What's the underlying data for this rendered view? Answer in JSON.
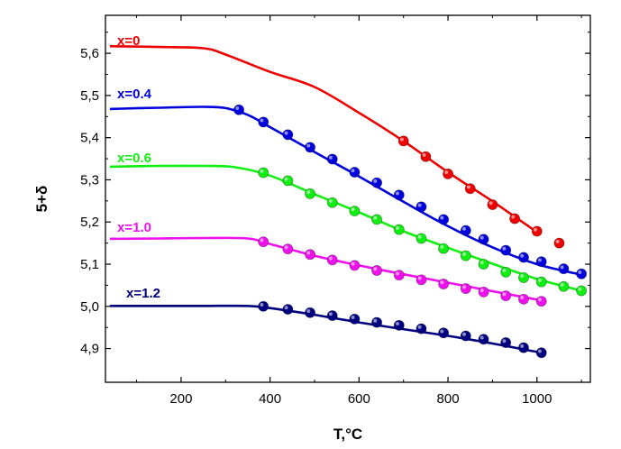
{
  "chart_data": {
    "type": "scatter",
    "xlabel": "T,°C",
    "ylabel": "5+δ",
    "xlim": [
      30,
      1120
    ],
    "ylim": [
      4.82,
      5.69
    ],
    "x_ticks": [
      200,
      400,
      600,
      800,
      1000
    ],
    "y_ticks": [
      4.9,
      5.0,
      5.1,
      5.2,
      5.3,
      5.4,
      5.5,
      5.6
    ],
    "y_tick_labels": [
      "4,9",
      "5,0",
      "5,1",
      "5,2",
      "5,3",
      "5,4",
      "5,5",
      "5,6"
    ],
    "grid": false,
    "series": [
      {
        "name": "x=0",
        "color": "#ee0000",
        "line": {
          "x": [
            40,
            150,
            250,
            300,
            400,
            500,
            600,
            700,
            800,
            900,
            1000
          ],
          "y": [
            5.617,
            5.615,
            5.612,
            5.597,
            5.556,
            5.52,
            5.459,
            5.392,
            5.318,
            5.249,
            5.176
          ]
        },
        "points": {
          "x": [
            700,
            750,
            800,
            850,
            900,
            950,
            1000,
            1050
          ],
          "y": [
            5.392,
            5.355,
            5.314,
            5.279,
            5.241,
            5.208,
            5.178,
            5.15
          ]
        }
      },
      {
        "name": "x=0.4",
        "color": "#0000dd",
        "line": {
          "x": [
            40,
            150,
            250,
            300,
            350,
            400,
            500,
            600,
            700,
            800,
            900,
            1000,
            1100
          ],
          "y": [
            5.468,
            5.471,
            5.473,
            5.47,
            5.454,
            5.425,
            5.366,
            5.308,
            5.248,
            5.19,
            5.14,
            5.1,
            5.075
          ]
        },
        "points": {
          "x": [
            330,
            385,
            440,
            490,
            540,
            590,
            640,
            690,
            740,
            790,
            840,
            880,
            930,
            970,
            1010,
            1060,
            1100
          ],
          "y": [
            5.466,
            5.437,
            5.407,
            5.377,
            5.349,
            5.318,
            5.293,
            5.264,
            5.236,
            5.206,
            5.18,
            5.159,
            5.133,
            5.116,
            5.106,
            5.089,
            5.077
          ]
        }
      },
      {
        "name": "x=0.6",
        "color": "#11ee11",
        "line": {
          "x": [
            40,
            150,
            250,
            320,
            400,
            500,
            600,
            700,
            800,
            900,
            1000,
            1100
          ],
          "y": [
            5.331,
            5.333,
            5.333,
            5.33,
            5.31,
            5.266,
            5.223,
            5.178,
            5.139,
            5.101,
            5.065,
            5.037
          ]
        },
        "points": {
          "x": [
            385,
            440,
            490,
            540,
            590,
            640,
            690,
            740,
            790,
            840,
            880,
            930,
            970,
            1010,
            1060,
            1100
          ],
          "y": [
            5.317,
            5.298,
            5.267,
            5.246,
            5.226,
            5.206,
            5.182,
            5.161,
            5.137,
            5.12,
            5.1,
            5.081,
            5.068,
            5.058,
            5.047,
            5.037
          ]
        }
      },
      {
        "name": "x=1.0",
        "color": "#ee11ee",
        "line": {
          "x": [
            40,
            150,
            250,
            350,
            400,
            500,
            600,
            700,
            800,
            900,
            1000
          ],
          "y": [
            5.16,
            5.161,
            5.162,
            5.161,
            5.148,
            5.12,
            5.097,
            5.076,
            5.056,
            5.036,
            5.016
          ]
        },
        "points": {
          "x": [
            385,
            440,
            490,
            540,
            590,
            640,
            690,
            740,
            790,
            840,
            880,
            930,
            970,
            1010
          ],
          "y": [
            5.153,
            5.136,
            5.123,
            5.11,
            5.097,
            5.085,
            5.074,
            5.063,
            5.053,
            5.042,
            5.034,
            5.025,
            5.017,
            5.012
          ]
        }
      },
      {
        "name": "x=1.2",
        "color": "#000080",
        "line": {
          "x": [
            40,
            150,
            250,
            350,
            400,
            500,
            600,
            700,
            800,
            900,
            1000
          ],
          "y": [
            5.001,
            5.001,
            5.001,
            5.001,
            4.996,
            4.98,
            4.962,
            4.946,
            4.93,
            4.912,
            4.892
          ]
        },
        "points": {
          "x": [
            385,
            440,
            490,
            540,
            590,
            640,
            690,
            740,
            790,
            840,
            880,
            930,
            970,
            1010
          ],
          "y": [
            5.0,
            4.993,
            4.985,
            4.978,
            4.97,
            4.962,
            4.955,
            4.947,
            4.937,
            4.93,
            4.922,
            4.914,
            4.902,
            4.89
          ]
        }
      }
    ]
  }
}
